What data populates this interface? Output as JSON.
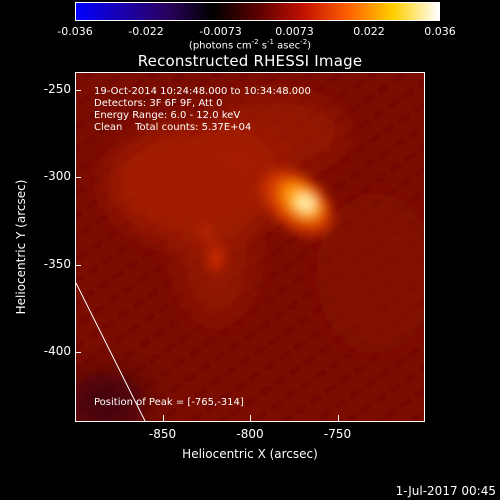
{
  "colorbar": {
    "ticks": [
      "-0.036",
      "-0.022",
      "-0.0073",
      "0.0073",
      "0.022",
      "0.036"
    ],
    "tick_values": [
      -0.036,
      -0.022,
      -0.0073,
      0.0073,
      0.022,
      0.036
    ],
    "units_prefix": "(photons cm",
    "units_exp1": "-2",
    "units_mid": " s",
    "units_exp2": "-1",
    "units_mid2": " asec",
    "units_exp3": "-2",
    "units_suffix": ")",
    "colors": [
      "#0000ff",
      "#1a00b0",
      "#2a0060",
      "#000000",
      "#5a0000",
      "#c01000",
      "#ff6000",
      "#ffd000",
      "#ffffff"
    ]
  },
  "chart_data": {
    "type": "heatmap",
    "title": "Reconstructed RHESSI Image",
    "xlabel": "Heliocentric X (arcsec)",
    "ylabel": "Heliocentric Y (arcsec)",
    "xlim": [
      -900,
      -700
    ],
    "ylim": [
      -440,
      -240
    ],
    "xticks": [
      "-850",
      "-800",
      "-750"
    ],
    "xtick_values": [
      -850,
      -800,
      -750
    ],
    "yticks": [
      "-250",
      "-300",
      "-350",
      "-400"
    ],
    "ytick_values": [
      -250,
      -300,
      -350,
      -400
    ],
    "peak": {
      "x": -765,
      "y": -314,
      "label": "Position of Peak = [-765,-314]"
    },
    "info_lines": [
      "19-Oct-2014 10:24:48.000 to 10:34:48.000",
      "Detectors: 3F 6F 9F, Att 0",
      "Energy Range: 6.0 - 12.0 keV",
      "Clean    Total counts: 5.37E+04"
    ]
  },
  "timestamp": "1-Jul-2017 00:45"
}
